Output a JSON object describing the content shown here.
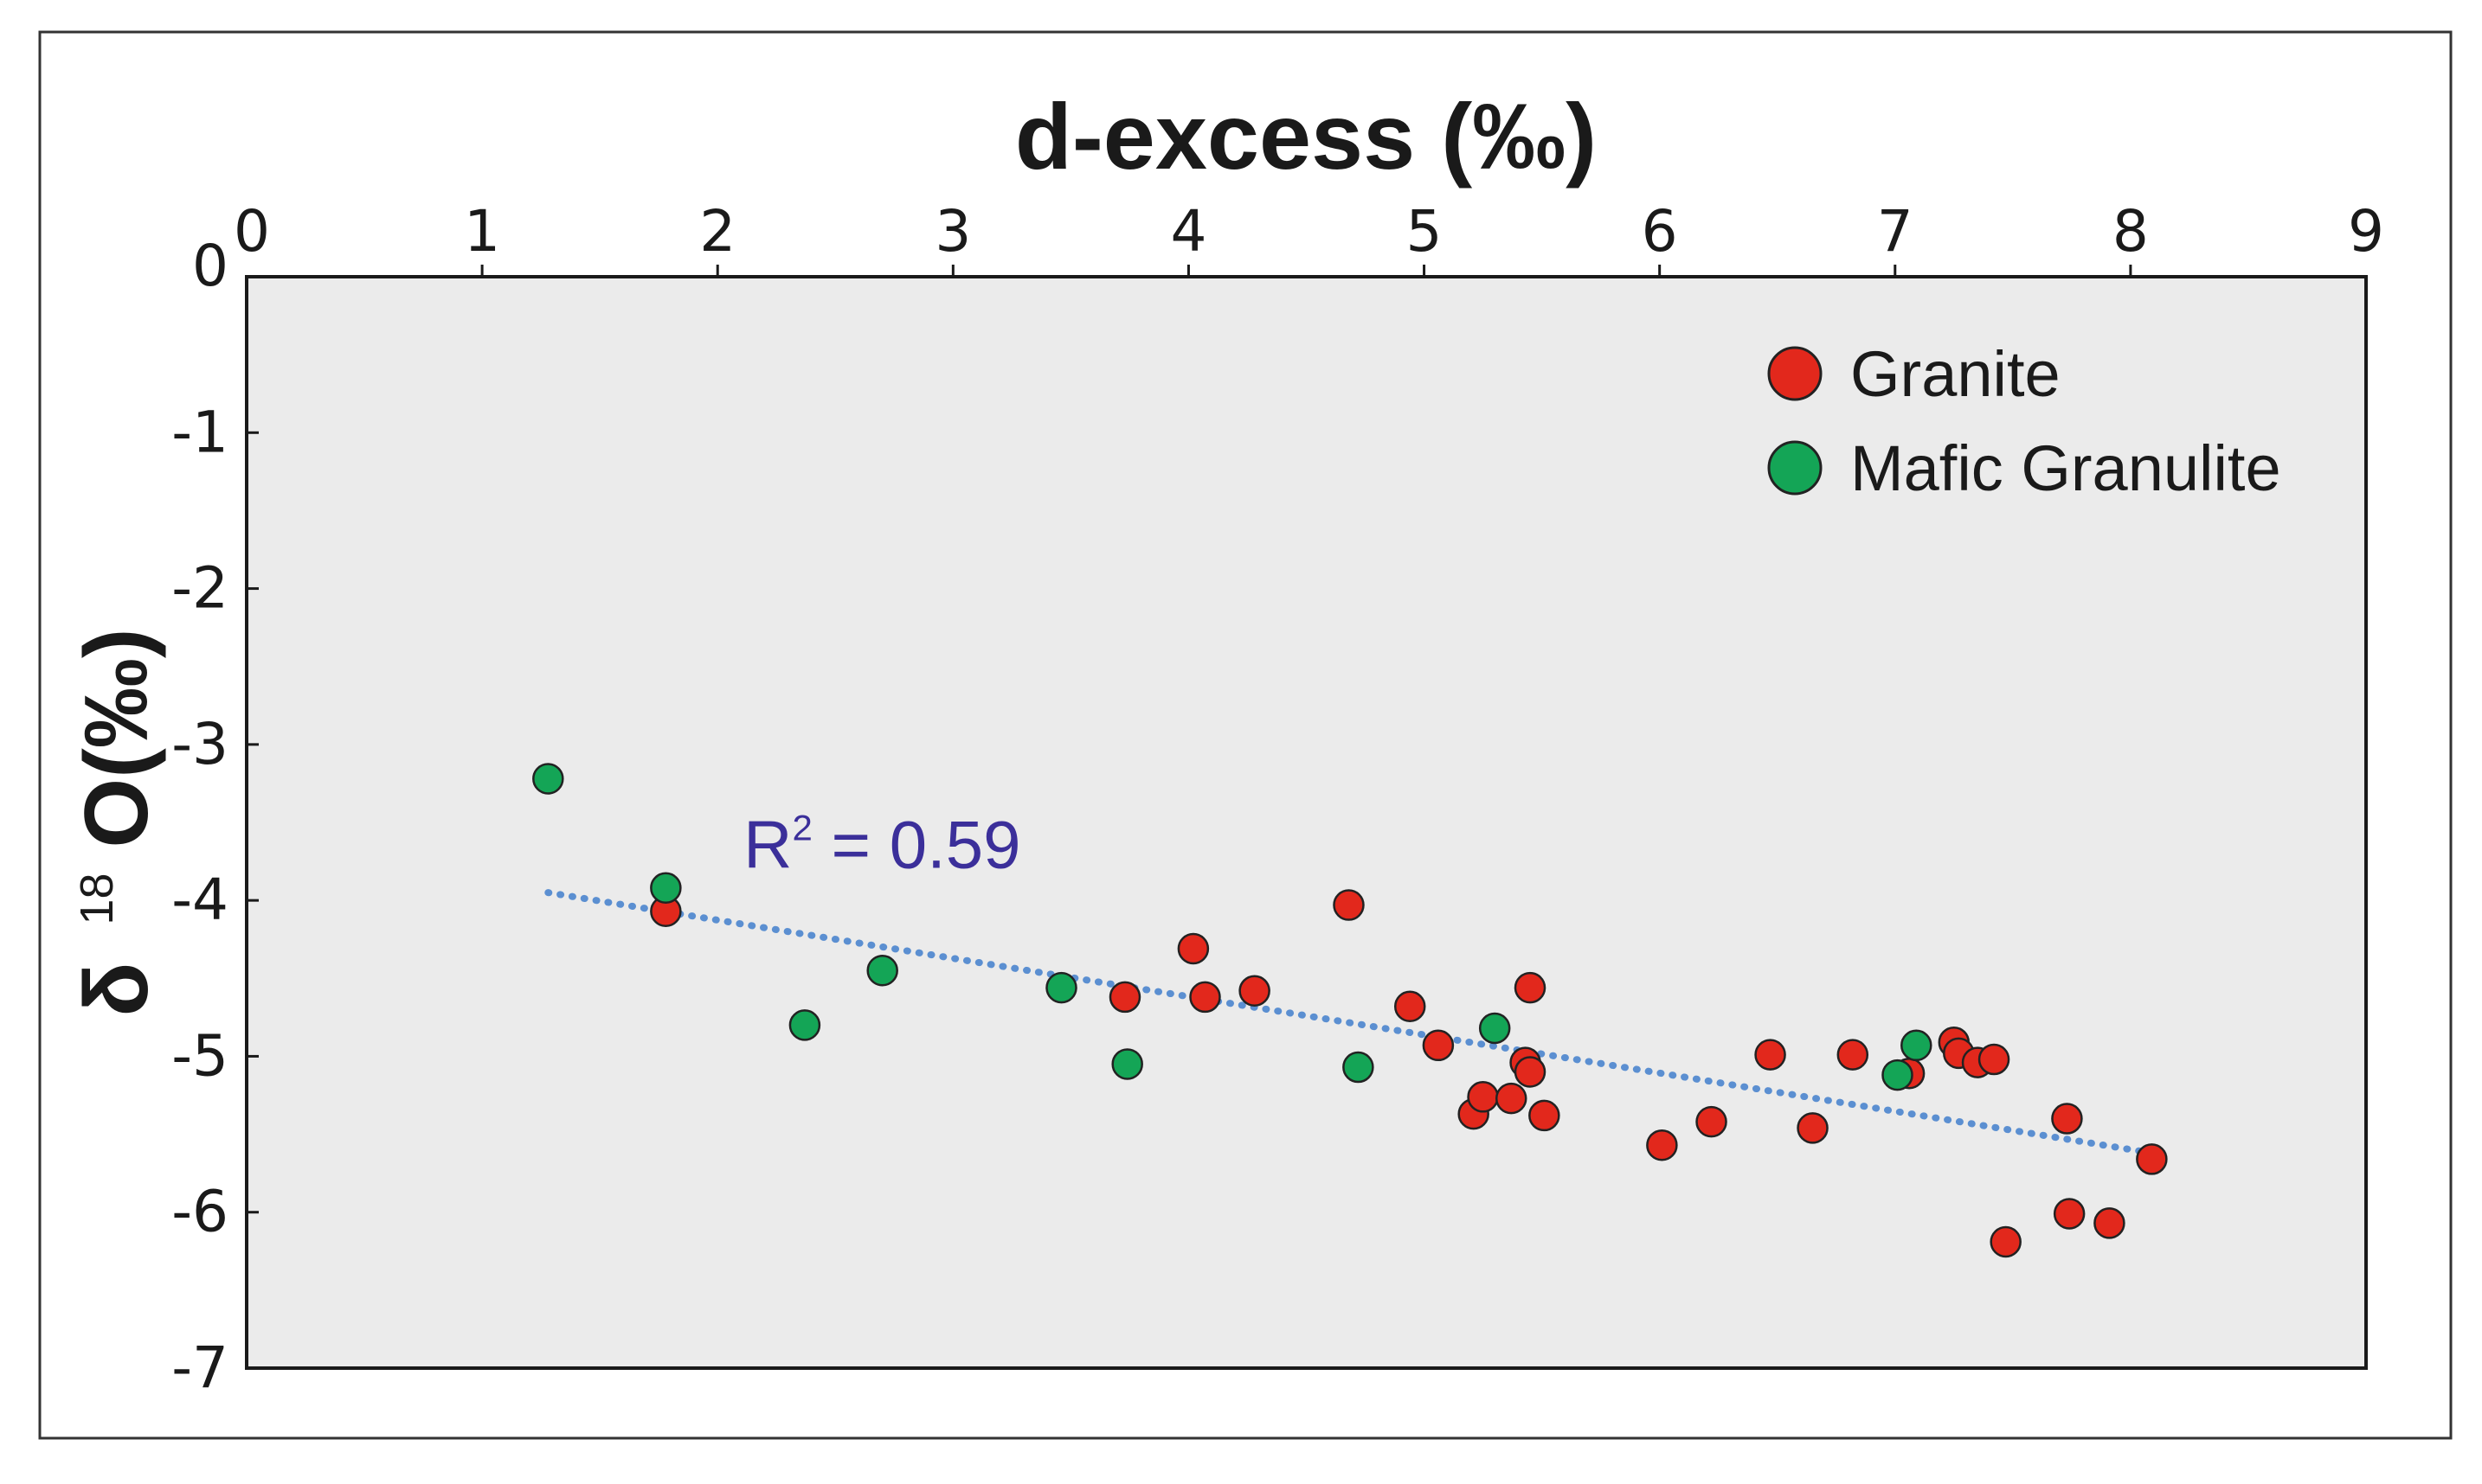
{
  "chart_data": {
    "type": "scatter",
    "xlabel": "d-excess (‰)",
    "xlabel_position": "top",
    "ylabel_prefix": "δ",
    "ylabel_sup": "18",
    "ylabel_suffix": "O(‰)",
    "xlim": [
      0,
      9
    ],
    "ylim": [
      -7,
      0
    ],
    "x_ticks": [
      "0",
      "1",
      "2",
      "3",
      "4",
      "5",
      "6",
      "7",
      "8",
      "9"
    ],
    "y_ticks": [
      "0",
      "-1",
      "-2",
      "-3",
      "-4",
      "-5",
      "-6",
      "-7"
    ],
    "grid": false,
    "legend_position": "top-right",
    "colors": {
      "plot_background": "#ebebeb",
      "frame": "#1a1a1a",
      "outer_border": "#333333",
      "trendline": "#5b8fd1",
      "annotation": "#3b2f9a"
    },
    "series": [
      {
        "name": "Granite",
        "color": "#e2281c",
        "points": [
          [
            1.78,
            -4.07
          ],
          [
            3.73,
            -4.62
          ],
          [
            4.02,
            -4.31
          ],
          [
            4.07,
            -4.62
          ],
          [
            4.28,
            -4.58
          ],
          [
            4.68,
            -4.03
          ],
          [
            4.94,
            -4.68
          ],
          [
            5.06,
            -4.93
          ],
          [
            5.21,
            -5.37
          ],
          [
            5.25,
            -5.26
          ],
          [
            5.37,
            -5.27
          ],
          [
            5.43,
            -5.04
          ],
          [
            5.45,
            -5.1
          ],
          [
            5.45,
            -4.56
          ],
          [
            5.51,
            -5.38
          ],
          [
            6.01,
            -5.57
          ],
          [
            6.22,
            -5.42
          ],
          [
            6.47,
            -4.99
          ],
          [
            6.65,
            -5.46
          ],
          [
            6.82,
            -4.99
          ],
          [
            7.06,
            -5.11
          ],
          [
            7.25,
            -4.91
          ],
          [
            7.27,
            -4.98
          ],
          [
            7.35,
            -5.04
          ],
          [
            7.42,
            -5.02
          ],
          [
            7.47,
            -6.19
          ],
          [
            7.73,
            -5.4
          ],
          [
            7.74,
            -6.01
          ],
          [
            7.91,
            -6.07
          ],
          [
            8.09,
            -5.66
          ]
        ]
      },
      {
        "name": "Mafic Granulite",
        "color": "#14a556",
        "points": [
          [
            1.28,
            -3.22
          ],
          [
            1.78,
            -3.92
          ],
          [
            2.37,
            -4.8
          ],
          [
            2.7,
            -4.45
          ],
          [
            3.46,
            -4.56
          ],
          [
            3.74,
            -5.05
          ],
          [
            4.72,
            -5.07
          ],
          [
            5.3,
            -4.82
          ],
          [
            7.01,
            -5.12
          ],
          [
            7.09,
            -4.93
          ]
        ]
      }
    ],
    "trendline": {
      "style": "dotted",
      "x": [
        1.28,
        8.09
      ],
      "y": [
        -3.95,
        -5.62
      ]
    },
    "annotations": [
      {
        "base": "R",
        "sup": "2",
        "rest": " = 0.59",
        "x": 2.11,
        "y": -3.79
      }
    ]
  }
}
